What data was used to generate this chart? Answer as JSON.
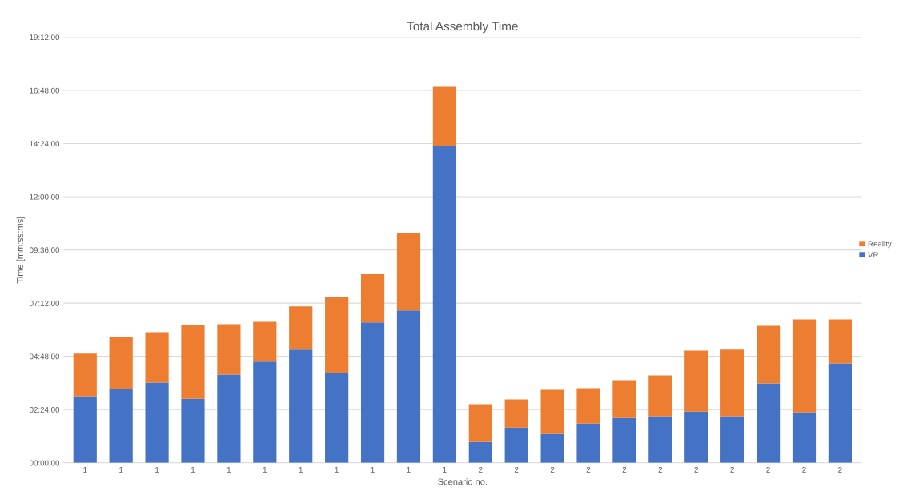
{
  "chart_data": {
    "type": "bar",
    "title": "Total Assembly Time",
    "xlabel": "Scenario no.",
    "ylabel": "Time [mm:ss:ms]",
    "stacked": true,
    "grid": "y",
    "legend": "right",
    "categories": [
      "1",
      "1",
      "1",
      "1",
      "1",
      "1",
      "1",
      "1",
      "1",
      "1",
      "1",
      "2",
      "2",
      "2",
      "2",
      "2",
      "2",
      "2",
      "2",
      "2",
      "2",
      "2"
    ],
    "series": [
      {
        "name": "VR",
        "color": "#4472c4",
        "values": [
          3.0,
          3.33,
          3.62,
          2.89,
          3.98,
          4.56,
          5.1,
          4.05,
          6.33,
          6.87,
          14.28,
          0.94,
          1.59,
          1.3,
          1.77,
          2.02,
          2.1,
          2.31,
          2.1,
          3.58,
          2.28,
          4.48
        ]
      },
      {
        "name": "Reality",
        "color": "#ed7d31",
        "values": [
          1.92,
          2.35,
          2.27,
          3.33,
          2.27,
          1.8,
          1.95,
          3.43,
          2.17,
          3.51,
          2.68,
          1.7,
          1.27,
          1.99,
          1.59,
          1.7,
          1.84,
          2.75,
          3.0,
          2.6,
          4.19,
          1.99
        ]
      }
    ],
    "ylim": [
      0,
      19.2
    ],
    "yticks": [
      {
        "value": 0,
        "label": "00:00:00"
      },
      {
        "value": 2.4,
        "label": "02:24:00"
      },
      {
        "value": 4.8,
        "label": "04:48:00"
      },
      {
        "value": 7.2,
        "label": "07:12:00"
      },
      {
        "value": 9.6,
        "label": "09:36:00"
      },
      {
        "value": 12,
        "label": "12:00:00"
      },
      {
        "value": 14.4,
        "label": "14:24:00"
      },
      {
        "value": 16.8,
        "label": "16:48:00"
      },
      {
        "value": 19.2,
        "label": "19:12:00"
      }
    ]
  }
}
